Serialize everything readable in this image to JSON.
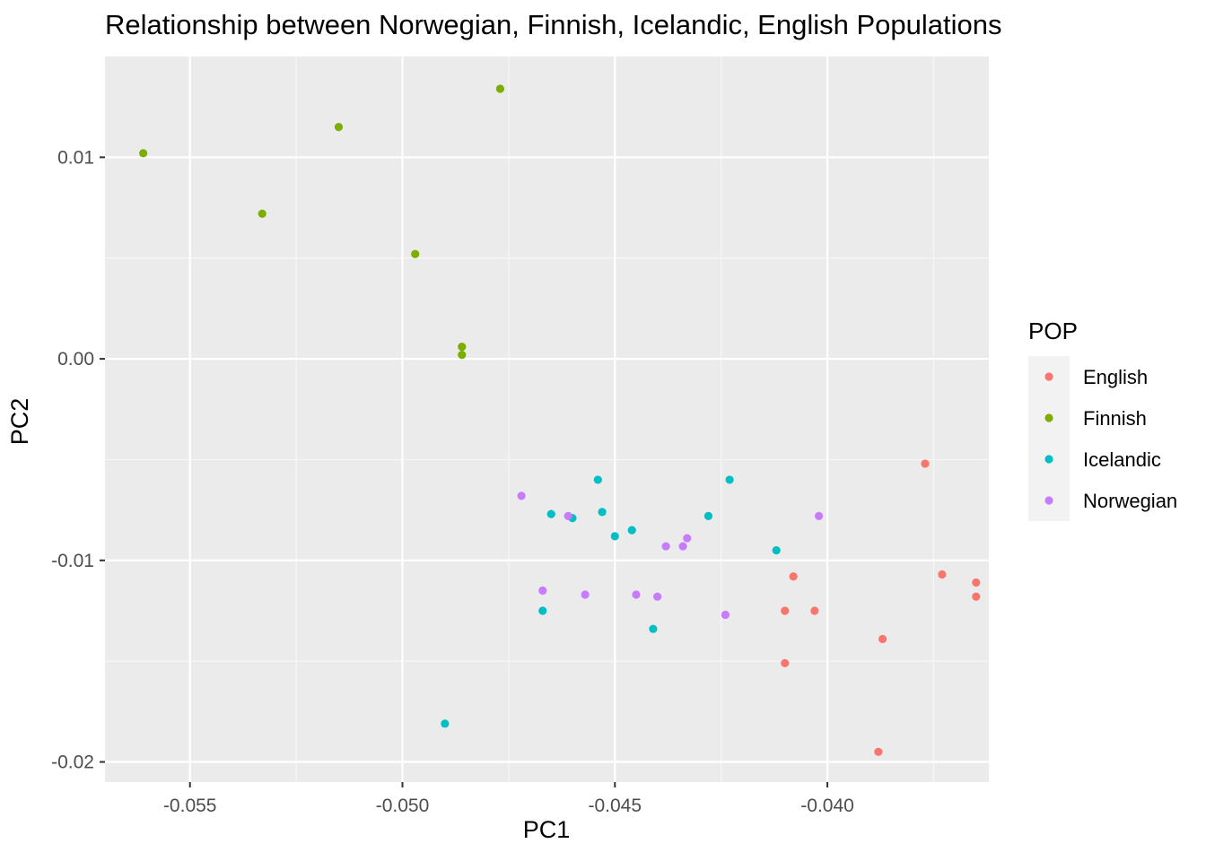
{
  "chart_data": {
    "type": "scatter",
    "title": "Relationship between Norwegian, Finnish, Icelandic, English Populations",
    "xlabel": "PC1",
    "ylabel": "PC2",
    "xlim": [
      -0.057,
      -0.0362
    ],
    "ylim": [
      -0.021,
      0.015
    ],
    "x_ticks": [
      -0.055,
      -0.05,
      -0.045,
      -0.04
    ],
    "x_tick_labels": [
      "-0.055",
      "-0.050",
      "-0.045",
      "-0.040"
    ],
    "y_ticks": [
      -0.02,
      -0.01,
      0.0,
      0.01
    ],
    "y_tick_labels": [
      "-0.02",
      "-0.01",
      "0.00",
      "0.01"
    ],
    "grid": true,
    "legend": {
      "title": "POP",
      "position": "right"
    },
    "series": [
      {
        "name": "English",
        "color": "#F8766D",
        "points": [
          [
            -0.0377,
            -0.0052
          ],
          [
            -0.0373,
            -0.0107
          ],
          [
            -0.0365,
            -0.0111
          ],
          [
            -0.0365,
            -0.0118
          ],
          [
            -0.0408,
            -0.0108
          ],
          [
            -0.041,
            -0.0125
          ],
          [
            -0.0403,
            -0.0125
          ],
          [
            -0.0387,
            -0.0139
          ],
          [
            -0.041,
            -0.0151
          ],
          [
            -0.0388,
            -0.0195
          ]
        ]
      },
      {
        "name": "Finnish",
        "color": "#7CAE00",
        "points": [
          [
            -0.0561,
            0.0102
          ],
          [
            -0.0533,
            0.0072
          ],
          [
            -0.0515,
            0.0115
          ],
          [
            -0.0477,
            0.0134
          ],
          [
            -0.0497,
            0.0052
          ],
          [
            -0.0486,
            0.0006
          ],
          [
            -0.0486,
            0.0002
          ]
        ]
      },
      {
        "name": "Icelandic",
        "color": "#00BFC4",
        "points": [
          [
            -0.0454,
            -0.006
          ],
          [
            -0.0423,
            -0.006
          ],
          [
            -0.0465,
            -0.0077
          ],
          [
            -0.046,
            -0.0079
          ],
          [
            -0.0453,
            -0.0076
          ],
          [
            -0.0446,
            -0.0085
          ],
          [
            -0.045,
            -0.0088
          ],
          [
            -0.0428,
            -0.0078
          ],
          [
            -0.0412,
            -0.0095
          ],
          [
            -0.0467,
            -0.0125
          ],
          [
            -0.0441,
            -0.0134
          ],
          [
            -0.049,
            -0.0181
          ]
        ]
      },
      {
        "name": "Norwegian",
        "color": "#C77CFF",
        "points": [
          [
            -0.0472,
            -0.0068
          ],
          [
            -0.0461,
            -0.0078
          ],
          [
            -0.0438,
            -0.0093
          ],
          [
            -0.0434,
            -0.0093
          ],
          [
            -0.0433,
            -0.0089
          ],
          [
            -0.0402,
            -0.0078
          ],
          [
            -0.0467,
            -0.0115
          ],
          [
            -0.0457,
            -0.0117
          ],
          [
            -0.0445,
            -0.0117
          ],
          [
            -0.044,
            -0.0118
          ],
          [
            -0.0424,
            -0.0127
          ]
        ]
      }
    ]
  }
}
